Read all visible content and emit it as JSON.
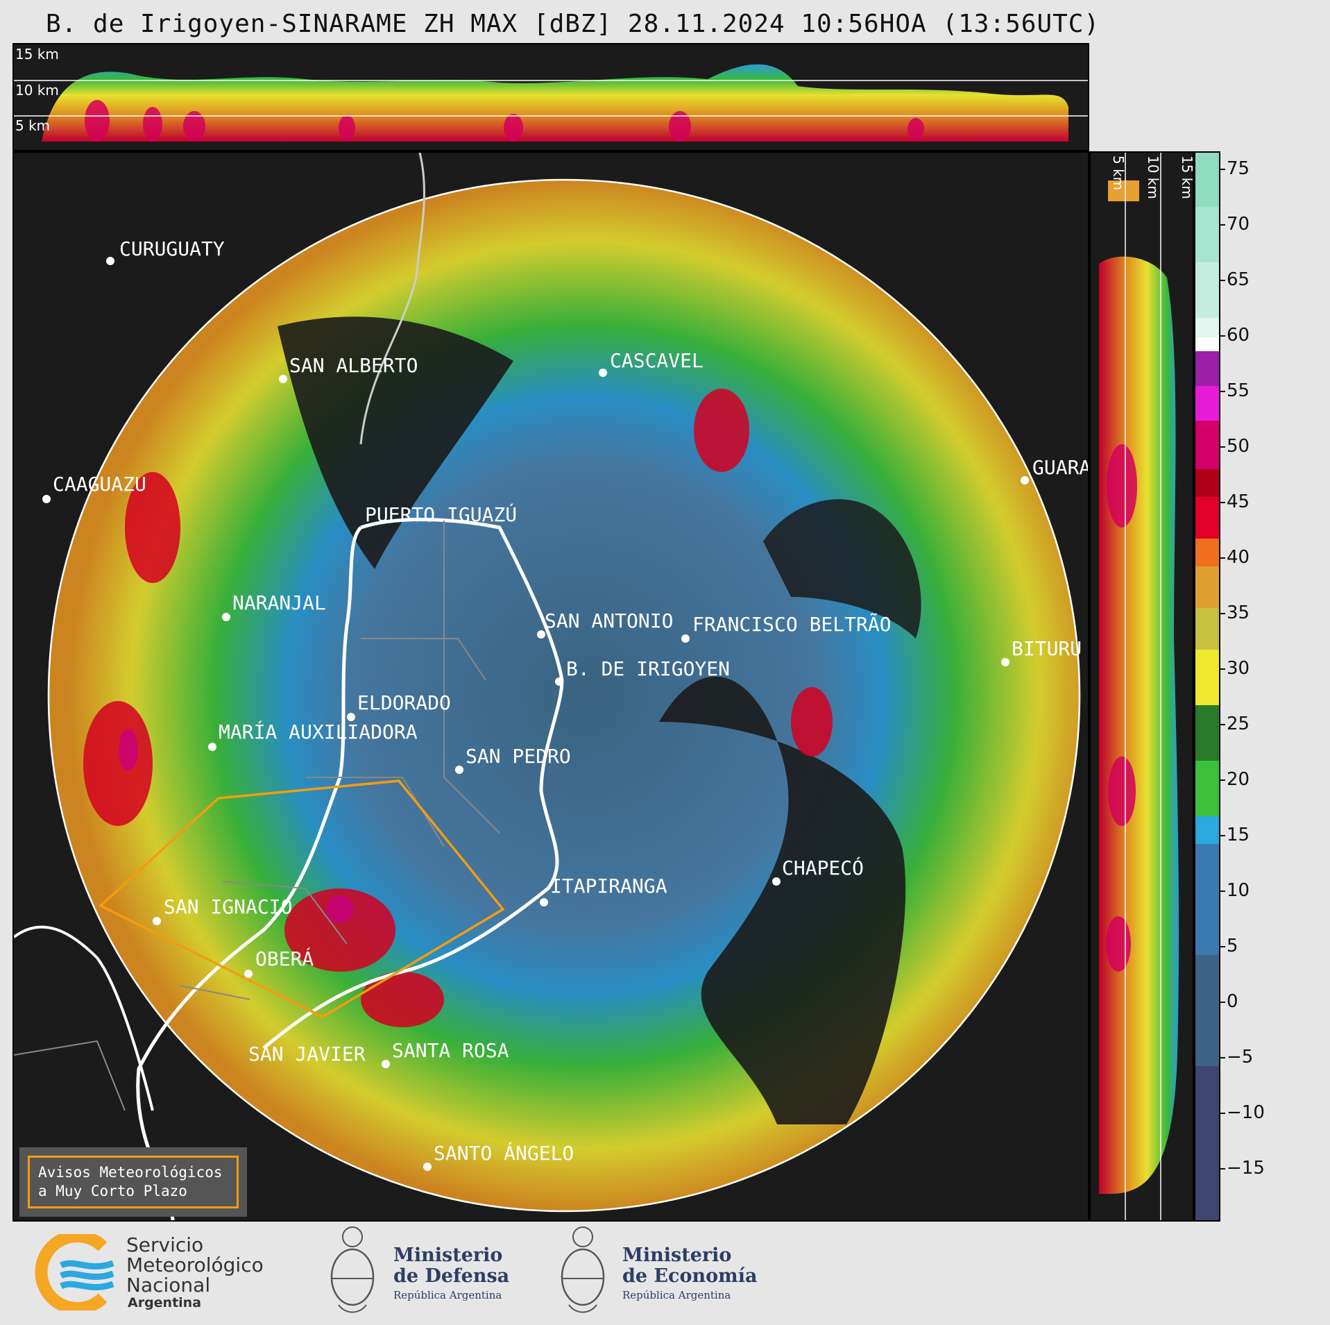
{
  "title": "B. de Irigoyen-SINARAME ZH MAX [dBZ] 28.11.2024 10:56HOA (13:56UTC)",
  "top_profile": {
    "height_labels": [
      "15 km",
      "10 km",
      "5 km"
    ]
  },
  "side_profile": {
    "height_labels": [
      "5 km",
      "10 km",
      "15 km"
    ]
  },
  "colorbar": {
    "unit": "dBZ",
    "ticks": [
      "75",
      "70",
      "65",
      "60",
      "55",
      "50",
      "45",
      "40",
      "35",
      "30",
      "25",
      "20",
      "15",
      "10",
      "5",
      "0",
      "−5",
      "−10",
      "−15"
    ]
  },
  "cities": [
    {
      "name": "CURUGUATY"
    },
    {
      "name": "SAN ALBERTO"
    },
    {
      "name": "CASCAVEL"
    },
    {
      "name": "CAAGUAZU"
    },
    {
      "name": "GUARA"
    },
    {
      "name": "PUERTO IGUAZÚ"
    },
    {
      "name": "NARANJAL"
    },
    {
      "name": "SAN ANTONIO"
    },
    {
      "name": "FRANCISCO BELTRÃO"
    },
    {
      "name": "B. DE IRIGOYEN"
    },
    {
      "name": "BITURU"
    },
    {
      "name": "ELDORADO"
    },
    {
      "name": "MARÍA AUXILIADORA"
    },
    {
      "name": "SAN PEDRO"
    },
    {
      "name": "CHAPECÓ"
    },
    {
      "name": "ITAPIRANGA"
    },
    {
      "name": "SAN IGNACIO"
    },
    {
      "name": "OBERÁ"
    },
    {
      "name": "SAN JAVIER"
    },
    {
      "name": "SANTA ROSA"
    },
    {
      "name": "SANTO ÁNGELO"
    }
  ],
  "legend": {
    "line1": "Avisos Meteorológicos",
    "line2": "a Muy Corto Plazo"
  },
  "logos": {
    "smn": {
      "line1": "Servicio",
      "line2": "Meteorológico",
      "line3": "Nacional",
      "line4": "Argentina"
    },
    "defensa": {
      "line1": "Ministerio",
      "line2": "de Defensa",
      "line3": "República Argentina"
    },
    "economia": {
      "line1": "Ministerio",
      "line2": "de Economía",
      "line3": "República Argentina"
    }
  }
}
